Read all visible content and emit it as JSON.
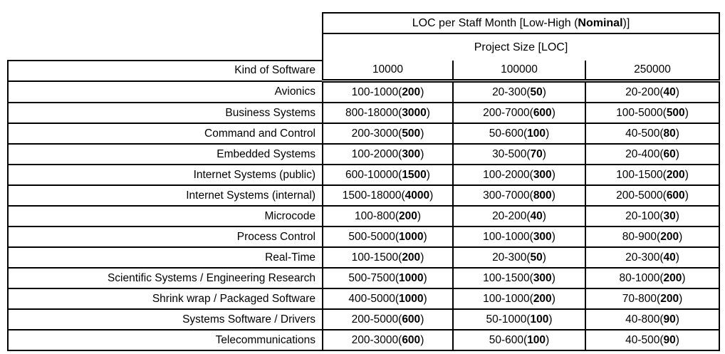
{
  "colors": {
    "text": "#000000",
    "border": "#000000",
    "background": "#ffffff"
  },
  "table": {
    "title": {
      "pre": "LOC per Staff Month [Low-High (",
      "bold": "Nominal",
      "post": ")]"
    },
    "subtitle": "Project Size [LOC]",
    "kind_header": "Kind of Software",
    "size_headers": [
      "10000",
      "100000",
      "250000"
    ],
    "rows": [
      {
        "kind": "Avionics",
        "cells": [
          {
            "range": "100-1000",
            "nominal": "200"
          },
          {
            "range": "20-300",
            "nominal": "50"
          },
          {
            "range": "20-200",
            "nominal": "40"
          }
        ]
      },
      {
        "kind": "Business Systems",
        "cells": [
          {
            "range": "800-18000",
            "nominal": "3000"
          },
          {
            "range": "200-7000",
            "nominal": "600"
          },
          {
            "range": "100-5000",
            "nominal": "500"
          }
        ]
      },
      {
        "kind": "Command and Control",
        "cells": [
          {
            "range": "200-3000",
            "nominal": "500"
          },
          {
            "range": "50-600",
            "nominal": "100"
          },
          {
            "range": "40-500",
            "nominal": "80"
          }
        ]
      },
      {
        "kind": "Embedded Systems",
        "cells": [
          {
            "range": "100-2000",
            "nominal": "300"
          },
          {
            "range": "30-500",
            "nominal": "70"
          },
          {
            "range": "20-400",
            "nominal": "60"
          }
        ]
      },
      {
        "kind": "Internet Systems (public)",
        "cells": [
          {
            "range": "600-10000",
            "nominal": "1500"
          },
          {
            "range": "100-2000",
            "nominal": "300"
          },
          {
            "range": "100-1500",
            "nominal": "200"
          }
        ]
      },
      {
        "kind": "Internet Systems (internal)",
        "cells": [
          {
            "range": "1500-18000",
            "nominal": "4000"
          },
          {
            "range": "300-7000",
            "nominal": "800"
          },
          {
            "range": "200-5000",
            "nominal": "600"
          }
        ]
      },
      {
        "kind": "Microcode",
        "cells": [
          {
            "range": "100-800",
            "nominal": "200"
          },
          {
            "range": "20-200",
            "nominal": "40"
          },
          {
            "range": "20-100",
            "nominal": "30"
          }
        ]
      },
      {
        "kind": "Process Control",
        "cells": [
          {
            "range": "500-5000",
            "nominal": "1000"
          },
          {
            "range": "100-1000",
            "nominal": "300"
          },
          {
            "range": "80-900",
            "nominal": "200"
          }
        ]
      },
      {
        "kind": "Real-Time",
        "cells": [
          {
            "range": "100-1500",
            "nominal": "200"
          },
          {
            "range": "20-300",
            "nominal": "50"
          },
          {
            "range": "20-300",
            "nominal": "40"
          }
        ]
      },
      {
        "kind": "Scientific Systems / Engineering Research",
        "cells": [
          {
            "range": "500-7500",
            "nominal": "1000"
          },
          {
            "range": "100-1500",
            "nominal": "300"
          },
          {
            "range": "80-1000",
            "nominal": "200"
          }
        ]
      },
      {
        "kind": "Shrink wrap / Packaged Software",
        "cells": [
          {
            "range": "400-5000",
            "nominal": "1000"
          },
          {
            "range": "100-1000",
            "nominal": "200"
          },
          {
            "range": "70-800",
            "nominal": "200"
          }
        ]
      },
      {
        "kind": "Systems Software / Drivers",
        "cells": [
          {
            "range": "200-5000",
            "nominal": "600"
          },
          {
            "range": "50-1000",
            "nominal": "100"
          },
          {
            "range": "40-800",
            "nominal": "90"
          }
        ]
      },
      {
        "kind": "Telecommunications",
        "cells": [
          {
            "range": "200-3000",
            "nominal": "600"
          },
          {
            "range": "50-600",
            "nominal": "100"
          },
          {
            "range": "40-500",
            "nominal": "90"
          }
        ]
      }
    ]
  }
}
